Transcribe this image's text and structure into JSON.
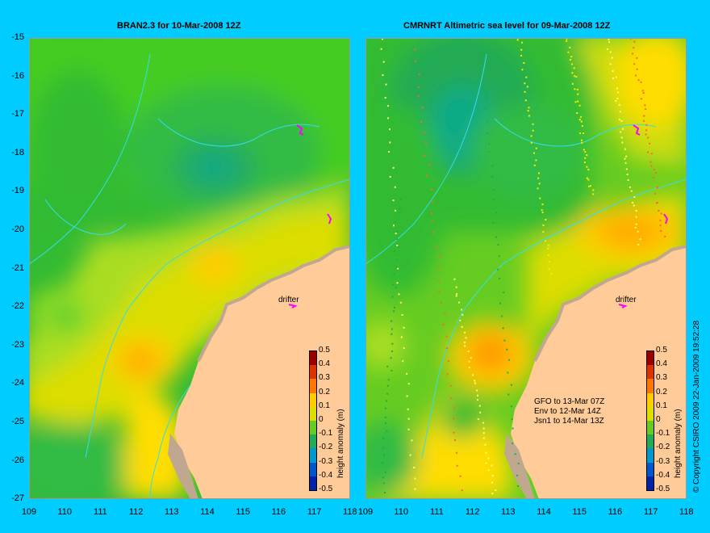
{
  "panels": [
    {
      "title": "BRAN2.3 for 10-Mar-2008 12Z"
    },
    {
      "title": "CMRNRT Altimetric sea level  for 09-Mar-2008 12Z"
    }
  ],
  "y_ticks": [
    "-15",
    "-16",
    "-17",
    "-18",
    "-19",
    "-20",
    "-21",
    "-22",
    "-23",
    "-24",
    "-25",
    "-26",
    "-27"
  ],
  "x_ticks": [
    "109",
    "110",
    "111",
    "112",
    "113",
    "114",
    "115",
    "116",
    "117",
    "118"
  ],
  "colorbar": {
    "title": "height anomaly (m)",
    "ticks": [
      "0.5",
      "0.4",
      "0.3",
      "0.2",
      "0.1",
      "0",
      "-0.1",
      "-0.2",
      "-0.3",
      "-0.4",
      "-0.5"
    ]
  },
  "drifter_label": "drifter",
  "satellites": [
    "GFO to 13-Mar 07Z",
    "Env to 12-Mar 14Z",
    "Jsn1 to 14-Mar 13Z"
  ],
  "copyright": "© Copyright CSIRO 2009  22-Jan-2009 19:52:28",
  "colors": {
    "background": "#00ccff",
    "land": "#ffcc99",
    "coast": "#c0a890",
    "contour": "#33ddee",
    "drifter": "#ff00ff"
  }
}
